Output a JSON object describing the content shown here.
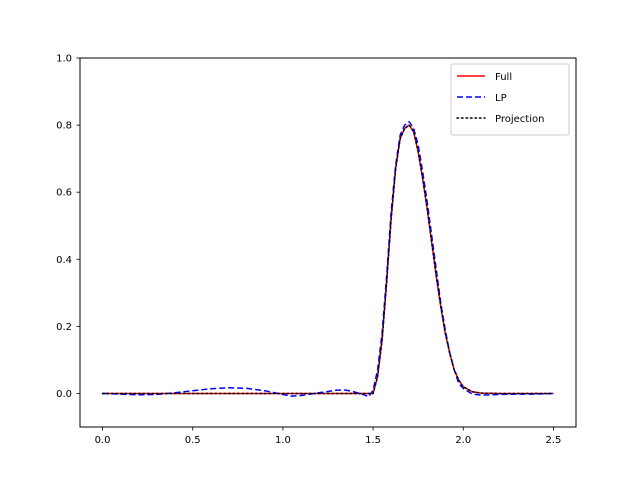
{
  "chart_data": {
    "type": "line",
    "title": "",
    "xlabel": "",
    "ylabel": "",
    "xlim": [
      -0.125,
      2.625
    ],
    "ylim": [
      -0.1,
      1.0
    ],
    "xticks": [
      0.0,
      0.5,
      1.0,
      1.5,
      2.0,
      2.5
    ],
    "xtick_labels": [
      "0.0",
      "0.5",
      "1.0",
      "1.5",
      "2.0",
      "2.5"
    ],
    "yticks": [
      0.0,
      0.2,
      0.4,
      0.6,
      0.8,
      1.0
    ],
    "ytick_labels": [
      "0.0",
      "0.2",
      "0.4",
      "0.6",
      "0.8",
      "1.0"
    ],
    "grid": false,
    "legend_position": "top-right",
    "series": [
      {
        "name": "Full",
        "color": "#ff0000",
        "style": "solid",
        "x": [
          0.0,
          0.1,
          0.2,
          0.3,
          0.4,
          0.5,
          0.6,
          0.7,
          0.8,
          0.9,
          1.0,
          1.1,
          1.2,
          1.3,
          1.4,
          1.45,
          1.5,
          1.525,
          1.55,
          1.575,
          1.6,
          1.625,
          1.65,
          1.675,
          1.7,
          1.725,
          1.75,
          1.775,
          1.8,
          1.825,
          1.85,
          1.875,
          1.9,
          1.925,
          1.95,
          1.975,
          2.0,
          2.05,
          2.1,
          2.2,
          2.3,
          2.4,
          2.5
        ],
        "y": [
          0.0,
          0.0,
          0.0,
          0.0,
          0.0,
          0.0,
          0.0,
          0.0,
          0.0,
          0.0,
          0.0,
          0.0,
          0.0,
          0.0,
          0.0,
          0.0,
          0.0,
          0.05,
          0.16,
          0.33,
          0.52,
          0.67,
          0.76,
          0.79,
          0.8,
          0.78,
          0.72,
          0.64,
          0.55,
          0.45,
          0.35,
          0.26,
          0.18,
          0.12,
          0.07,
          0.04,
          0.02,
          0.005,
          0.001,
          0.0,
          0.0,
          0.0,
          0.0
        ]
      },
      {
        "name": "LP",
        "color": "#0000ff",
        "style": "dashed",
        "x": [
          0.0,
          0.1,
          0.2,
          0.3,
          0.4,
          0.5,
          0.6,
          0.7,
          0.8,
          0.9,
          1.0,
          1.05,
          1.1,
          1.2,
          1.3,
          1.35,
          1.4,
          1.45,
          1.475,
          1.5,
          1.525,
          1.55,
          1.575,
          1.6,
          1.625,
          1.65,
          1.675,
          1.7,
          1.725,
          1.75,
          1.775,
          1.8,
          1.825,
          1.85,
          1.875,
          1.9,
          1.925,
          1.95,
          1.975,
          2.0,
          2.05,
          2.1,
          2.2,
          2.3,
          2.4,
          2.5
        ],
        "y": [
          0.0,
          -0.002,
          -0.004,
          -0.003,
          0.002,
          0.008,
          0.014,
          0.017,
          0.015,
          0.008,
          -0.003,
          -0.008,
          -0.006,
          0.002,
          0.01,
          0.01,
          0.004,
          -0.004,
          -0.01,
          0.01,
          0.07,
          0.18,
          0.35,
          0.54,
          0.68,
          0.77,
          0.8,
          0.81,
          0.79,
          0.74,
          0.66,
          0.57,
          0.47,
          0.37,
          0.27,
          0.19,
          0.12,
          0.07,
          0.03,
          0.015,
          -0.002,
          -0.005,
          -0.003,
          -0.002,
          -0.002,
          0.0
        ]
      },
      {
        "name": "Projection",
        "color": "#000000",
        "style": "dotted",
        "x": [
          0.0,
          0.1,
          0.2,
          0.3,
          0.4,
          0.5,
          0.6,
          0.7,
          0.8,
          0.9,
          1.0,
          1.1,
          1.2,
          1.3,
          1.4,
          1.45,
          1.5,
          1.525,
          1.55,
          1.575,
          1.6,
          1.625,
          1.65,
          1.675,
          1.7,
          1.725,
          1.75,
          1.775,
          1.8,
          1.825,
          1.85,
          1.875,
          1.9,
          1.925,
          1.95,
          1.975,
          2.0,
          2.05,
          2.1,
          2.2,
          2.3,
          2.4,
          2.5
        ],
        "y": [
          0.0,
          0.0,
          0.0,
          0.0,
          0.0,
          0.0,
          0.0,
          0.0,
          0.0,
          0.0,
          0.0,
          0.0,
          0.0,
          0.0,
          0.0,
          0.0,
          0.0,
          0.05,
          0.16,
          0.33,
          0.52,
          0.67,
          0.76,
          0.79,
          0.8,
          0.78,
          0.72,
          0.64,
          0.55,
          0.45,
          0.35,
          0.26,
          0.18,
          0.12,
          0.07,
          0.04,
          0.02,
          0.005,
          0.001,
          0.0,
          0.0,
          0.0,
          0.0
        ]
      }
    ]
  }
}
